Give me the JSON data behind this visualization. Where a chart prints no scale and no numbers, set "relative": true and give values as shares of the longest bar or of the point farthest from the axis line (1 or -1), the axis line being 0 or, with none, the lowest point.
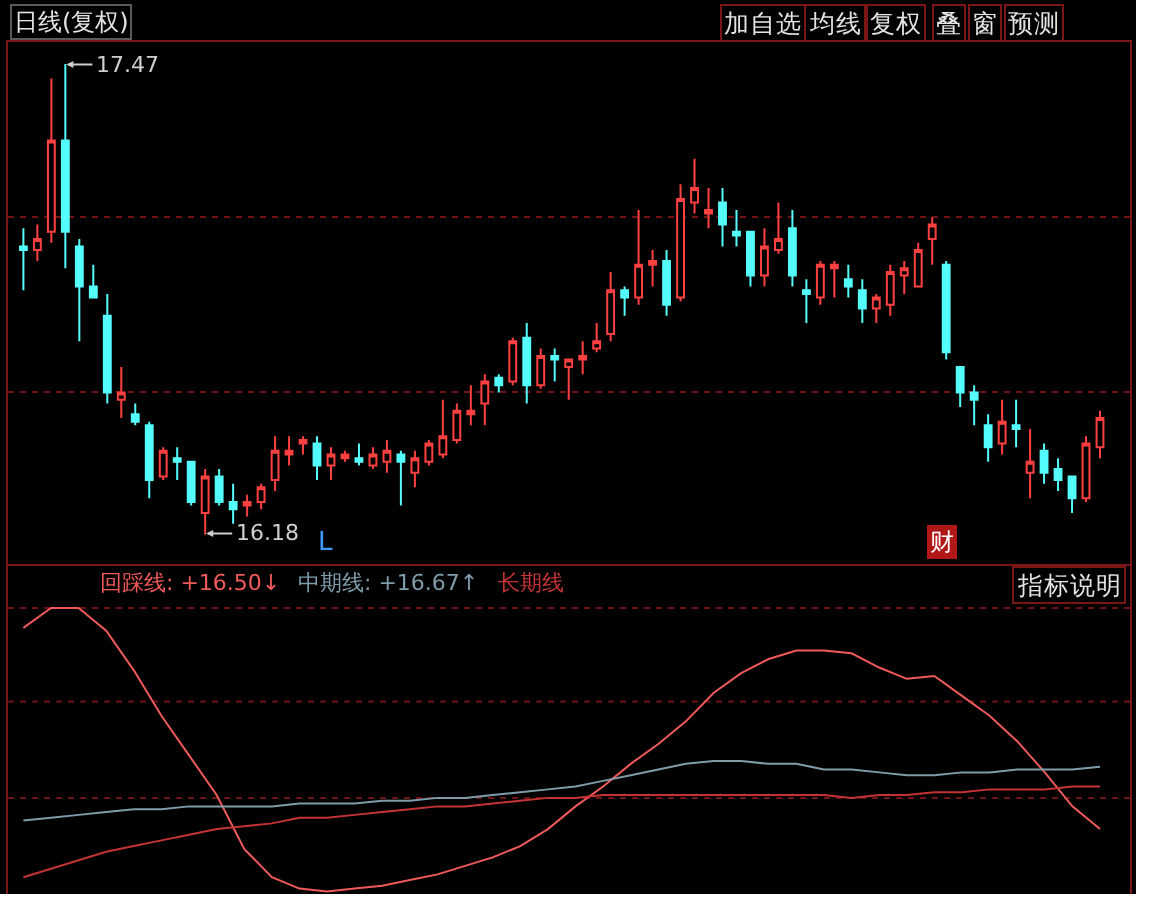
{
  "chart_data": [
    {
      "type": "candlestick",
      "title": "日线(复权)",
      "grid": "y",
      "ylim": [
        16.1,
        17.53
      ],
      "yticks": [
        {
          "value": 17.05,
          "label": null
        },
        {
          "value": 16.57,
          "label": null
        }
      ],
      "categories": [
        null,
        null,
        null,
        null,
        null,
        null,
        null,
        null,
        null,
        null,
        null,
        null,
        null,
        null,
        null,
        null,
        null,
        null,
        null,
        null,
        null,
        null,
        null,
        null,
        null,
        null,
        null,
        null,
        null,
        null,
        null,
        null,
        null,
        null,
        null,
        null,
        null,
        null,
        null,
        null,
        null,
        null,
        null,
        null,
        null,
        null,
        null,
        null,
        null,
        null,
        null,
        null,
        null,
        null,
        null,
        null,
        null,
        null,
        null,
        null,
        null,
        null,
        null,
        null,
        null,
        null,
        null,
        null,
        null,
        null,
        null,
        null,
        null,
        null,
        null,
        null,
        null,
        null
      ],
      "ohlc": [
        [
          16.97,
          17.02,
          16.85,
          16.96
        ],
        [
          16.96,
          17.03,
          16.93,
          16.99
        ],
        [
          17.01,
          17.43,
          16.98,
          17.26
        ],
        [
          17.26,
          17.47,
          16.91,
          17.01
        ],
        [
          16.97,
          16.99,
          16.71,
          16.86
        ],
        [
          16.86,
          16.92,
          16.83,
          16.83
        ],
        [
          16.78,
          16.84,
          16.54,
          16.57
        ],
        [
          16.55,
          16.64,
          16.5,
          16.57
        ],
        [
          16.51,
          16.54,
          16.48,
          16.49
        ],
        [
          16.48,
          16.49,
          16.28,
          16.33
        ],
        [
          16.34,
          16.42,
          16.33,
          16.41
        ],
        [
          16.39,
          16.42,
          16.33,
          16.38
        ],
        [
          16.38,
          16.38,
          16.26,
          16.27
        ],
        [
          16.24,
          16.36,
          16.18,
          16.34
        ],
        [
          16.34,
          16.36,
          16.26,
          16.27
        ],
        [
          16.27,
          16.32,
          16.21,
          16.25
        ],
        [
          16.26,
          16.29,
          16.23,
          16.27
        ],
        [
          16.27,
          16.32,
          16.25,
          16.31
        ],
        [
          16.33,
          16.45,
          16.3,
          16.41
        ],
        [
          16.4,
          16.45,
          16.37,
          16.41
        ],
        [
          16.43,
          16.45,
          16.4,
          16.44
        ],
        [
          16.43,
          16.45,
          16.33,
          16.37
        ],
        [
          16.37,
          16.42,
          16.33,
          16.4
        ],
        [
          16.39,
          16.41,
          16.38,
          16.4
        ],
        [
          16.39,
          16.43,
          16.37,
          16.38
        ],
        [
          16.37,
          16.42,
          16.36,
          16.4
        ],
        [
          16.38,
          16.44,
          16.35,
          16.41
        ],
        [
          16.4,
          16.41,
          16.26,
          16.38
        ],
        [
          16.35,
          16.41,
          16.31,
          16.39
        ],
        [
          16.38,
          16.44,
          16.37,
          16.43
        ],
        [
          16.4,
          16.55,
          16.39,
          16.45
        ],
        [
          16.44,
          16.54,
          16.43,
          16.52
        ],
        [
          16.51,
          16.59,
          16.48,
          16.52
        ],
        [
          16.54,
          16.62,
          16.48,
          16.6
        ],
        [
          16.61,
          16.62,
          16.57,
          16.59
        ],
        [
          16.6,
          16.72,
          16.59,
          16.71
        ],
        [
          16.72,
          16.76,
          16.54,
          16.59
        ],
        [
          16.59,
          16.69,
          16.58,
          16.67
        ],
        [
          16.67,
          16.69,
          16.6,
          16.66
        ],
        [
          16.64,
          16.66,
          16.55,
          16.66
        ],
        [
          16.66,
          16.71,
          16.62,
          16.67
        ],
        [
          16.69,
          16.76,
          16.68,
          16.71
        ],
        [
          16.73,
          16.9,
          16.71,
          16.85
        ],
        [
          16.85,
          16.86,
          16.78,
          16.83
        ],
        [
          16.83,
          17.07,
          16.81,
          16.92
        ],
        [
          16.92,
          16.96,
          16.86,
          16.93
        ],
        [
          16.93,
          16.96,
          16.78,
          16.81
        ],
        [
          16.83,
          17.14,
          16.82,
          17.1
        ],
        [
          17.09,
          17.21,
          17.06,
          17.13
        ],
        [
          17.06,
          17.13,
          17.02,
          17.07
        ],
        [
          17.09,
          17.13,
          16.97,
          17.03
        ],
        [
          17.01,
          17.07,
          16.97,
          17.0
        ],
        [
          17.01,
          17.01,
          16.86,
          16.89
        ],
        [
          16.89,
          17.02,
          16.86,
          16.97
        ],
        [
          16.96,
          17.09,
          16.95,
          16.99
        ],
        [
          17.02,
          17.07,
          16.86,
          16.89
        ],
        [
          16.85,
          16.88,
          16.76,
          16.84
        ],
        [
          16.83,
          16.93,
          16.81,
          16.92
        ],
        [
          16.91,
          16.93,
          16.83,
          16.92
        ],
        [
          16.88,
          16.92,
          16.83,
          16.86
        ],
        [
          16.85,
          16.88,
          16.76,
          16.8
        ],
        [
          16.8,
          16.84,
          16.76,
          16.83
        ],
        [
          16.81,
          16.92,
          16.78,
          16.9
        ],
        [
          16.89,
          16.93,
          16.84,
          16.91
        ],
        [
          16.86,
          16.98,
          16.86,
          16.96
        ],
        [
          16.99,
          17.05,
          16.92,
          17.03
        ],
        [
          16.92,
          16.93,
          16.66,
          16.68
        ],
        [
          16.64,
          16.64,
          16.53,
          16.57
        ],
        [
          16.57,
          16.59,
          16.48,
          16.55
        ],
        [
          16.48,
          16.51,
          16.38,
          16.42
        ],
        [
          16.43,
          16.55,
          16.4,
          16.49
        ],
        [
          16.48,
          16.55,
          16.42,
          16.47
        ],
        [
          16.35,
          16.47,
          16.28,
          16.38
        ],
        [
          16.41,
          16.43,
          16.32,
          16.35
        ],
        [
          16.36,
          16.39,
          16.3,
          16.33
        ],
        [
          16.34,
          16.34,
          16.24,
          16.28
        ],
        [
          16.28,
          16.45,
          16.27,
          16.43
        ],
        [
          16.42,
          16.52,
          16.39,
          16.5
        ]
      ],
      "colors": [
        "#54fcfc",
        "#ff4040",
        "#ff4040",
        "#54fcfc",
        "#54fcfc",
        "#54fcfc",
        "#54fcfc",
        "#ff4040",
        "#54fcfc",
        "#54fcfc",
        "#ff4040",
        "#54fcfc",
        "#54fcfc",
        "#ff4040",
        "#54fcfc",
        "#54fcfc",
        "#ff4040",
        "#ff4040",
        "#ff4040",
        "#ff4040",
        "#ff4040",
        "#54fcfc",
        "#ff4040",
        "#ff4040",
        "#54fcfc",
        "#ff4040",
        "#ff4040",
        "#54fcfc",
        "#ff4040",
        "#ff4040",
        "#ff4040",
        "#ff4040",
        "#ff4040",
        "#ff4040",
        "#54fcfc",
        "#ff4040",
        "#54fcfc",
        "#ff4040",
        "#54fcfc",
        "#ff4040",
        "#ff4040",
        "#ff4040",
        "#ff4040",
        "#54fcfc",
        "#ff4040",
        "#ff4040",
        "#54fcfc",
        "#ff4040",
        "#ff4040",
        "#ff4040",
        "#54fcfc",
        "#54fcfc",
        "#54fcfc",
        "#ff4040",
        "#ff4040",
        "#54fcfc",
        "#54fcfc",
        "#ff4040",
        "#ff4040",
        "#54fcfc",
        "#54fcfc",
        "#ff4040",
        "#ff4040",
        "#ff4040",
        "#ff4040",
        "#ff4040",
        "#54fcfc",
        "#54fcfc",
        "#54fcfc",
        "#54fcfc",
        "#ff4040",
        "#54fcfc",
        "#ff4040",
        "#54fcfc",
        "#54fcfc",
        "#54fcfc",
        "#ff4040",
        "#ff4040"
      ],
      "annotations": [
        "加自选",
        "均线",
        "复权",
        "叠",
        "窗",
        "预测",
        "L",
        "财",
        "17.47",
        "16.18"
      ]
    },
    {
      "type": "line",
      "relative": true,
      "legend": "top left",
      "categories": [
        null,
        null,
        null,
        null,
        null,
        null,
        null,
        null,
        null,
        null,
        null,
        null,
        null,
        null,
        null,
        null,
        null,
        null,
        null,
        null,
        null,
        null,
        null,
        null,
        null,
        null,
        null,
        null,
        null,
        null,
        null,
        null,
        null,
        null,
        null,
        null,
        null,
        null,
        null,
        null
      ],
      "series": [
        {
          "name": "回踩线: +16.50↓",
          "color": "#f05a5a",
          "values": [
            0.93,
            1,
            1,
            0.92,
            0.78,
            0.62,
            0.48,
            0.34,
            0.15,
            0.05,
            0.01,
            0,
            0.01,
            0.02,
            0.04,
            0.06,
            0.09,
            0.12,
            0.16,
            0.22,
            0.3,
            0.37,
            0.45,
            0.52,
            0.6,
            0.7,
            0.77,
            0.82,
            0.85,
            0.85,
            0.84,
            0.79,
            0.75,
            0.76,
            0.69,
            0.62,
            0.53,
            0.42,
            0.3,
            0.22
          ]
        },
        {
          "name": "中期线: +16.67↑",
          "color": "#7f9cab",
          "values": [
            0.25,
            0.26,
            0.27,
            0.28,
            0.29,
            0.29,
            0.3,
            0.3,
            0.3,
            0.3,
            0.31,
            0.31,
            0.31,
            0.32,
            0.32,
            0.33,
            0.33,
            0.34,
            0.35,
            0.36,
            0.37,
            0.39,
            0.41,
            0.43,
            0.45,
            0.46,
            0.46,
            0.45,
            0.45,
            0.43,
            0.43,
            0.42,
            0.41,
            0.41,
            0.42,
            0.42,
            0.43,
            0.43,
            0.43,
            0.44
          ]
        },
        {
          "name": "长期线",
          "color": "#c43434",
          "values": [
            0.05,
            0.08,
            0.11,
            0.14,
            0.16,
            0.18,
            0.2,
            0.22,
            0.23,
            0.24,
            0.26,
            0.26,
            0.27,
            0.28,
            0.29,
            0.3,
            0.3,
            0.31,
            0.32,
            0.33,
            0.33,
            0.34,
            0.34,
            0.34,
            0.34,
            0.34,
            0.34,
            0.34,
            0.34,
            0.34,
            0.33,
            0.34,
            0.34,
            0.35,
            0.35,
            0.36,
            0.36,
            0.36,
            0.37,
            0.37
          ]
        }
      ],
      "ref_lines": [
        {
          "axis": "y",
          "value": 0.33,
          "color": "#6e1414",
          "line_style": "dotted"
        },
        {
          "axis": "y",
          "value": 0.67,
          "color": "#6e1414",
          "line_style": "dotted"
        },
        {
          "axis": "y",
          "value": 1,
          "color": "#6e1414",
          "line_style": "dotted"
        }
      ],
      "annotations": [
        "指标说明"
      ]
    }
  ]
}
